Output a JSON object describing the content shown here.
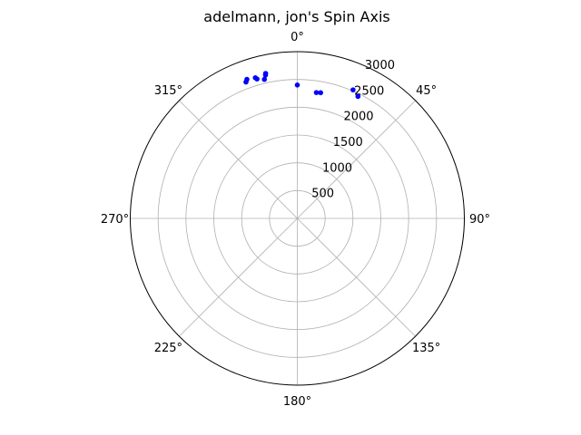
{
  "chart_data": {
    "type": "scatter",
    "projection": "polar",
    "title": "adelmann, jon's Spin Axis",
    "theta_direction": "clockwise",
    "theta_zero_location": "top",
    "theta_tick_labels": [
      "0°",
      "45°",
      "90°",
      "135°",
      "180°",
      "225°",
      "270°",
      "315°"
    ],
    "theta_ticks_deg": [
      0,
      45,
      90,
      135,
      180,
      225,
      270,
      315
    ],
    "r_ticks": [
      500,
      1000,
      1500,
      2000,
      2500,
      3000
    ],
    "r_tick_labels": [
      "500",
      "1000",
      "1500",
      "2000",
      "2500",
      "3000"
    ],
    "rlim": [
      0,
      3000
    ],
    "grid": true,
    "marker_color": "#0000ff",
    "series": [
      {
        "theta_deg": [
          0,
          8.6,
          10.5,
          23.4,
          26.4,
          -12.5,
          -12.3,
          -13.3,
          -16.1,
          -16.6,
          -19.9,
          -20.6
        ],
        "r": [
          2400,
          2290,
          2300,
          2520,
          2450,
          2640,
          2670,
          2570,
          2610,
          2640,
          2660,
          2620
        ]
      }
    ]
  }
}
